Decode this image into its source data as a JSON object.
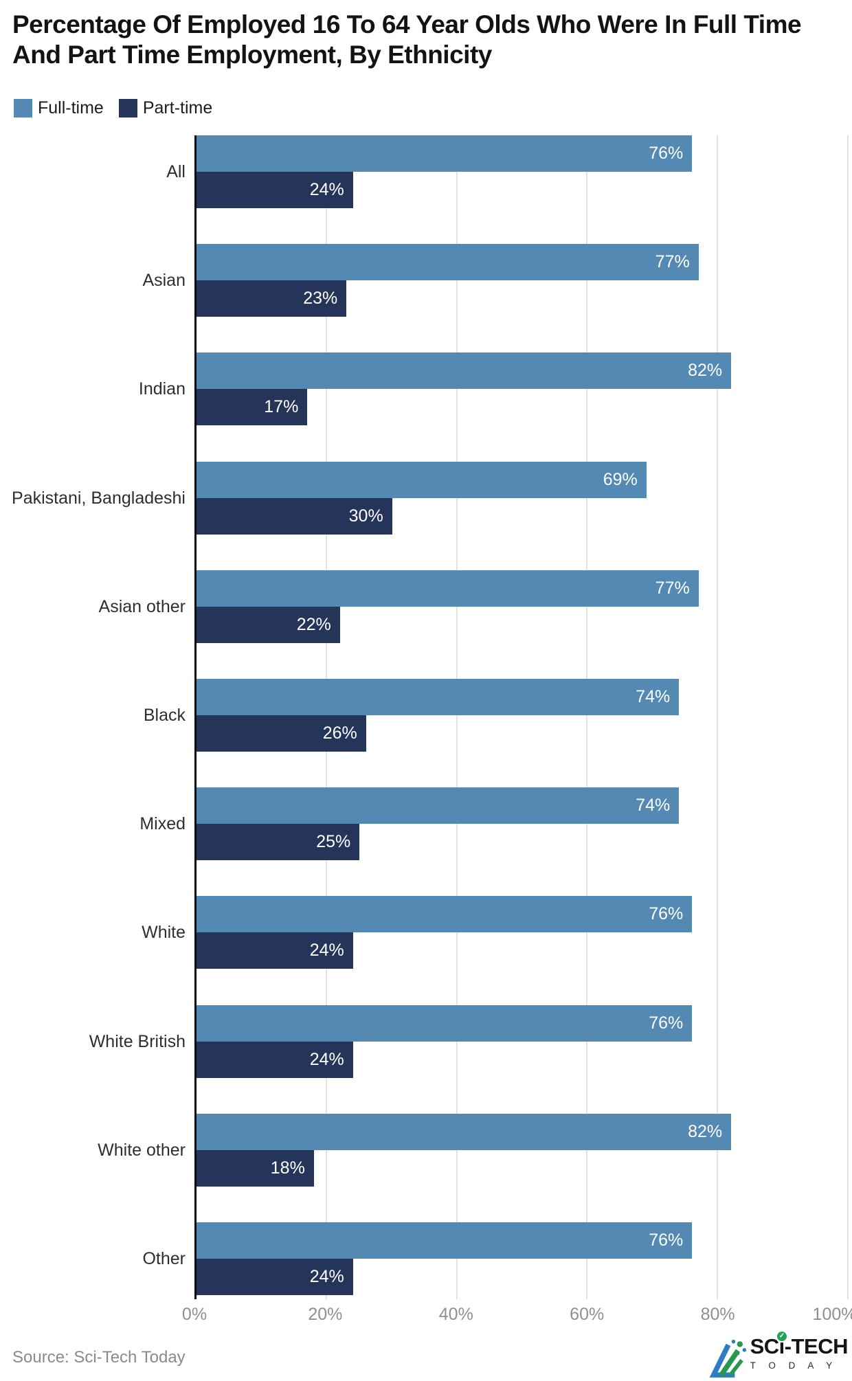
{
  "title": "Percentage Of Employed 16 To 64 Year Olds Who Were In Full Time And Part Time Employment, By Ethnicity",
  "legend": {
    "items": [
      {
        "label": "Full-time",
        "color": "#5389b2"
      },
      {
        "label": "Part-time",
        "color": "#253459"
      }
    ]
  },
  "chart_data": {
    "type": "bar",
    "orientation": "horizontal",
    "title": "Percentage Of Employed 16 To 64 Year Olds Who Were In Full Time And Part Time Employment, By Ethnicity",
    "categories": [
      "All",
      "Asian",
      "Indian",
      "Pakistani, Bangladeshi",
      "Asian other",
      "Black",
      "Mixed",
      "White",
      "White British",
      "White other",
      "Other"
    ],
    "series": [
      {
        "name": "Full-time",
        "color": "#5389b2",
        "values": [
          76,
          77,
          82,
          69,
          77,
          74,
          74,
          76,
          76,
          82,
          76
        ]
      },
      {
        "name": "Part-time",
        "color": "#253459",
        "values": [
          24,
          23,
          17,
          30,
          22,
          26,
          25,
          24,
          24,
          18,
          24
        ]
      }
    ],
    "value_suffix": "%",
    "xlim": [
      0,
      100
    ],
    "xticks": [
      "0%",
      "20%",
      "40%",
      "60%",
      "80%",
      "100%"
    ],
    "grid": "vertical-light-gray",
    "legend_position": "top-left",
    "bar_label_position": "inside-right",
    "colors": {
      "axis_line": "#0c0c0c",
      "gridline": "#e3e3e3",
      "tick_label": "#8f8f8f",
      "category_label": "#2e2e2e",
      "value_label": "#ffffff"
    }
  },
  "footer": {
    "source": "Source: Sci-Tech Today",
    "logo": {
      "brand_prefix": "SC",
      "brand_i": "i",
      "brand_suffix": "-TECH",
      "tagline": "T O D A Y",
      "check_glyph": "✓",
      "mark_blue": "#2f7cc3",
      "mark_green": "#259a4d"
    }
  }
}
